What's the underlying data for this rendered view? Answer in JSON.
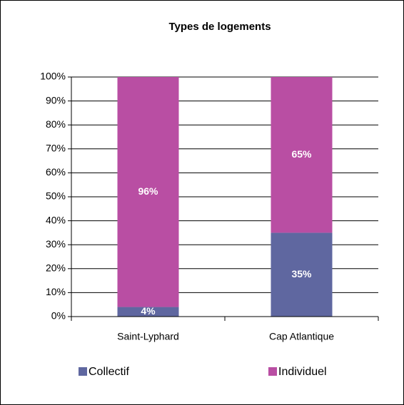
{
  "chart_data": {
    "type": "stacked_bar",
    "title": "Types de logements",
    "categories": [
      "Saint-Lyphard",
      "Cap Atlantique"
    ],
    "series": [
      {
        "name": "Collectif",
        "color": "#5f67a0",
        "values": [
          4,
          35
        ],
        "value_labels": [
          "4%",
          "35%"
        ]
      },
      {
        "name": "Individuel",
        "color": "#b94ea3",
        "values": [
          96,
          65
        ],
        "value_labels": [
          "96%",
          "65%"
        ]
      }
    ],
    "ylim": [
      0,
      100
    ],
    "yticks": [
      {
        "value": 0,
        "label": "0%"
      },
      {
        "value": 10,
        "label": "10%"
      },
      {
        "value": 20,
        "label": "20%"
      },
      {
        "value": 30,
        "label": "30%"
      },
      {
        "value": 40,
        "label": "40%"
      },
      {
        "value": 50,
        "label": "50%"
      },
      {
        "value": 60,
        "label": "60%"
      },
      {
        "value": 70,
        "label": "70%"
      },
      {
        "value": 80,
        "label": "80%"
      },
      {
        "value": 90,
        "label": "90%"
      },
      {
        "value": 100,
        "label": "100%"
      }
    ],
    "grid": true,
    "legend": "bottom"
  }
}
